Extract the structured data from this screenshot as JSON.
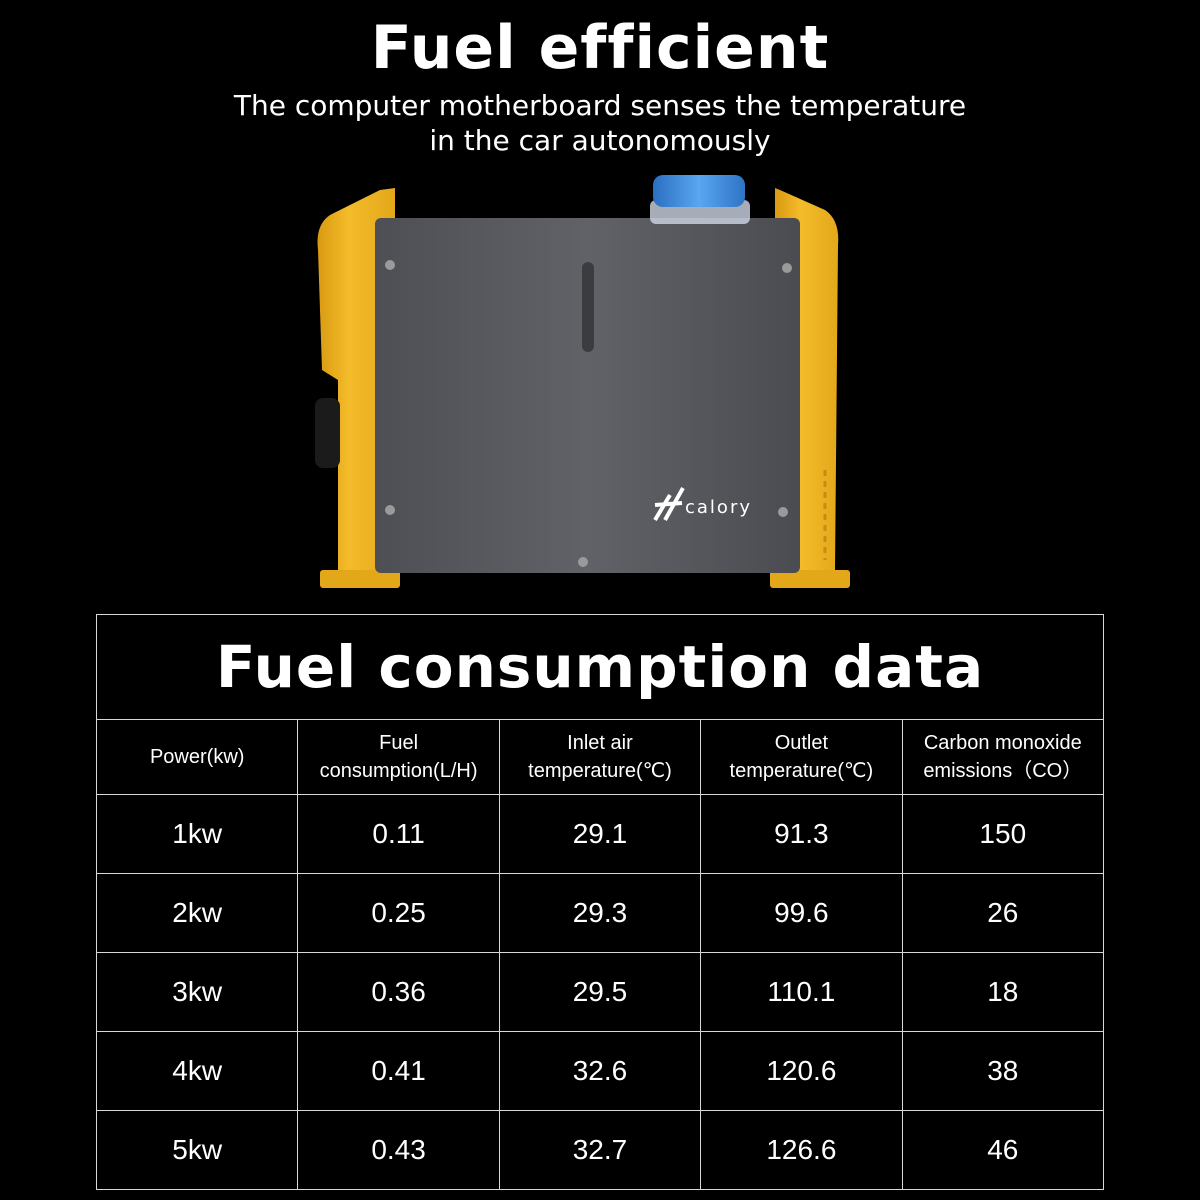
{
  "header": {
    "title": "Fuel efficient",
    "subtitle_line1": "The computer motherboard senses the temperature",
    "subtitle_line2": "in the car autonomously"
  },
  "product": {
    "brand_logo_text": "calory",
    "colors": {
      "frame": "#f2b520",
      "body": "#585a5f",
      "cap": "#3f8fe0"
    }
  },
  "table": {
    "title": "Fuel consumption data",
    "headers": [
      {
        "line1": "Power(kw)",
        "line2": ""
      },
      {
        "line1": "Fuel",
        "line2": "consumption(L/H)"
      },
      {
        "line1": "Inlet air",
        "line2": "temperature(℃)"
      },
      {
        "line1": "Outlet",
        "line2": "temperature(℃)"
      },
      {
        "line1": "Carbon monoxide",
        "line2": "emissions（CO）"
      }
    ],
    "rows": [
      [
        "1kw",
        "0.11",
        "29.1",
        "91.3",
        "150"
      ],
      [
        "2kw",
        "0.25",
        "29.3",
        "99.6",
        "26"
      ],
      [
        "3kw",
        "0.36",
        "29.5",
        "110.1",
        "18"
      ],
      [
        "4kw",
        "0.41",
        "32.6",
        "120.6",
        "38"
      ],
      [
        "5kw",
        "0.43",
        "32.7",
        "126.6",
        "46"
      ]
    ]
  }
}
